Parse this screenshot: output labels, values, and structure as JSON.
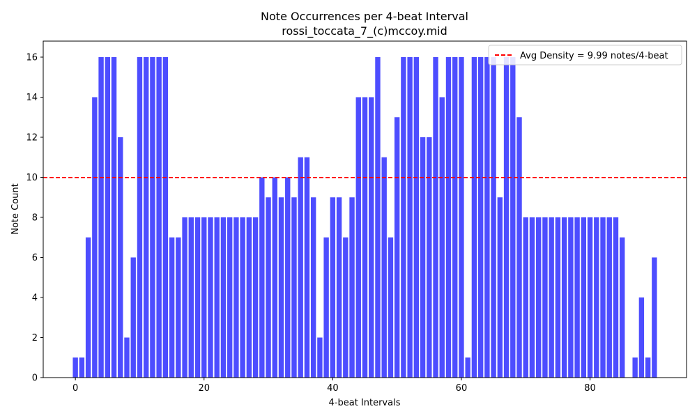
{
  "chart_data": {
    "type": "bar",
    "title": "Note Occurrences per 4-beat Interval",
    "subtitle": "rossi_toccata_7_(c)mccoy.mid",
    "xlabel": "4-beat Intervals",
    "ylabel": "Note Count",
    "xlim": [
      -5,
      95
    ],
    "ylim": [
      0,
      16.8
    ],
    "xticks": [
      0,
      20,
      40,
      60,
      80
    ],
    "yticks": [
      0,
      2,
      4,
      6,
      8,
      10,
      12,
      14,
      16
    ],
    "bar_color": "#4d4dff",
    "x": [
      0,
      1,
      2,
      3,
      4,
      5,
      6,
      7,
      8,
      9,
      10,
      11,
      12,
      13,
      14,
      15,
      16,
      17,
      18,
      19,
      20,
      21,
      22,
      23,
      24,
      25,
      26,
      27,
      28,
      29,
      30,
      31,
      32,
      33,
      34,
      35,
      36,
      37,
      38,
      39,
      40,
      41,
      42,
      43,
      44,
      45,
      46,
      47,
      48,
      49,
      50,
      51,
      52,
      53,
      54,
      55,
      56,
      57,
      58,
      59,
      60,
      61,
      62,
      63,
      64,
      65,
      66,
      67,
      68,
      69,
      70,
      71,
      72,
      73,
      74,
      75,
      76,
      77,
      78,
      79,
      80,
      81,
      82,
      83,
      84,
      85,
      86,
      87,
      88,
      89,
      90
    ],
    "values": [
      1,
      1,
      7,
      14,
      16,
      16,
      16,
      12,
      2,
      6,
      16,
      16,
      16,
      16,
      16,
      7,
      7,
      8,
      8,
      8,
      8,
      8,
      8,
      8,
      8,
      8,
      8,
      8,
      8,
      10,
      9,
      10,
      9,
      10,
      9,
      11,
      11,
      9,
      2,
      7,
      9,
      9,
      7,
      9,
      14,
      14,
      14,
      16,
      11,
      7,
      13,
      16,
      16,
      16,
      12,
      12,
      16,
      14,
      16,
      16,
      16,
      1,
      16,
      16,
      16,
      16,
      9,
      16,
      16,
      13,
      8,
      8,
      8,
      8,
      8,
      8,
      8,
      8,
      8,
      8,
      8,
      8,
      8,
      8,
      8,
      7,
      0,
      1,
      4,
      1,
      6
    ],
    "reference_line": {
      "value": 9.99,
      "orientation": "horizontal",
      "color": "#ff0000",
      "style": "dashed",
      "label": "Avg Density = 9.99 notes/4-beat"
    },
    "legend_position": "top-right",
    "grid": false
  }
}
